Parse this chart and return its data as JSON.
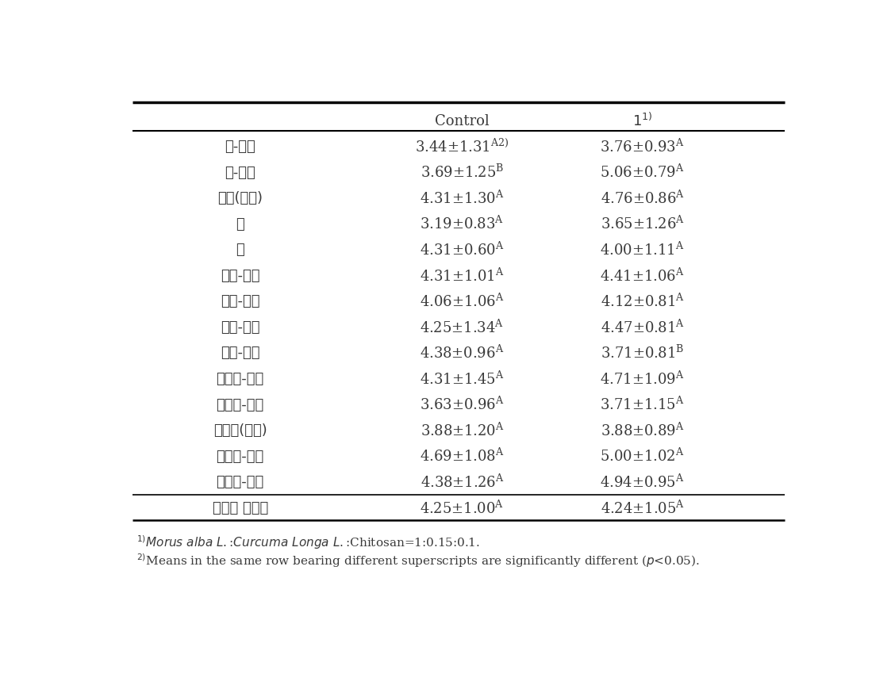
{
  "rows": [
    {
      "label": "색-외부",
      "control": "3.44±1.31",
      "control_sup": "A2)",
      "col1": "3.76±0.93",
      "col1_sup": "A",
      "separator_above": false,
      "last_row": false
    },
    {
      "label": "색-내부",
      "control": "3.69±1.25",
      "control_sup": "B",
      "col1": "5.06±0.79",
      "col1_sup": "A",
      "separator_above": false,
      "last_row": false
    },
    {
      "label": "형태(단면)",
      "control": "4.31±1.30",
      "control_sup": "A",
      "col1": "4.76±0.86",
      "col1_sup": "A",
      "separator_above": false,
      "last_row": false
    },
    {
      "label": "향",
      "control": "3.19±0.83",
      "control_sup": "A",
      "col1": "3.65±1.26",
      "col1_sup": "A",
      "separator_above": false,
      "last_row": false
    },
    {
      "label": "맛",
      "control": "4.31±0.60",
      "control_sup": "A",
      "col1": "4.00±1.11",
      "col1_sup": "A",
      "separator_above": false,
      "last_row": false
    },
    {
      "label": "질감-외부",
      "control": "4.31±1.01",
      "control_sup": "A",
      "col1": "4.41±1.06",
      "col1_sup": "A",
      "separator_above": false,
      "last_row": false
    },
    {
      "label": "질감-내부",
      "control": "4.06±1.06",
      "control_sup": "A",
      "col1": "4.12±0.81",
      "col1_sup": "A",
      "separator_above": false,
      "last_row": false
    },
    {
      "label": "경도-외부",
      "control": "4.25±1.34",
      "control_sup": "A",
      "col1": "4.47±0.81",
      "col1_sup": "A",
      "separator_above": false,
      "last_row": false
    },
    {
      "label": "경도-내부",
      "control": "4.38±0.96",
      "control_sup": "A",
      "col1": "3.71±0.81",
      "col1_sup": "B",
      "separator_above": false,
      "last_row": false
    },
    {
      "label": "탄력성-외부",
      "control": "4.31±1.45",
      "control_sup": "A",
      "col1": "4.71±1.09",
      "col1_sup": "A",
      "separator_above": false,
      "last_row": false
    },
    {
      "label": "탄력성-내부",
      "control": "3.63±0.96",
      "control_sup": "A",
      "col1": "3.71±1.15",
      "col1_sup": "A",
      "separator_above": false,
      "last_row": false
    },
    {
      "label": "다즙성(내부)",
      "control": "3.88±1.20",
      "control_sup": "A",
      "col1": "3.88±0.89",
      "col1_sup": "A",
      "separator_above": false,
      "last_row": false
    },
    {
      "label": "부착성-외부",
      "control": "4.69±1.08",
      "control_sup": "A",
      "col1": "5.00±1.02",
      "col1_sup": "A",
      "separator_above": false,
      "last_row": false
    },
    {
      "label": "부착성-내부",
      "control": "4.38±1.26",
      "control_sup": "A",
      "col1": "4.94±0.95",
      "col1_sup": "A",
      "separator_above": false,
      "last_row": false
    },
    {
      "label": "전체적 호감도",
      "control": "4.25±1.00",
      "control_sup": "A",
      "col1": "4.24±1.05",
      "col1_sup": "A",
      "separator_above": true,
      "last_row": true
    }
  ],
  "footnote1_plain": "Morus alba L.:Curcuma Longa L.:Chitosan=1:0.15:0.1.",
  "footnote1_prefix": "1)",
  "footnote2_plain": "Means in the same row bearing different superscripts are significantly different (",
  "footnote2_p": "p",
  "footnote2_suffix": "<0.05).",
  "footnote2_prefix": "2)",
  "text_color": "#3a3a3a",
  "background_color": "#ffffff",
  "font_size": 13,
  "sup_font_size": 8,
  "footnote_font_size": 11
}
